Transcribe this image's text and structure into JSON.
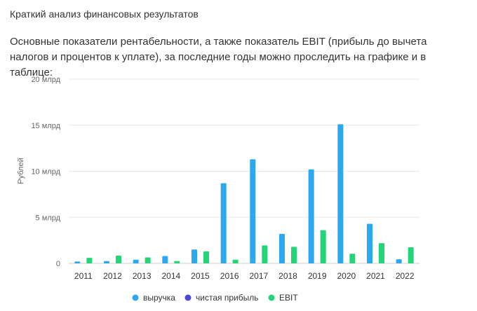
{
  "heading": "Краткий анализ финансовых результатов",
  "intro": "Основные показатели рентабельности, а также показатель EBIT (прибыль до вычета налогов и процентов к уплате), за последние годы можно проследить на графике и в таблице:",
  "chart_data": {
    "type": "bar",
    "title": "",
    "xlabel": "",
    "ylabel": "Рублей",
    "ylim": [
      0,
      20
    ],
    "yticks": [
      {
        "value": 0,
        "label": "0"
      },
      {
        "value": 5,
        "label": "5 млрд"
      },
      {
        "value": 10,
        "label": "10 млрд"
      },
      {
        "value": 15,
        "label": "15 млрд"
      },
      {
        "value": 20,
        "label": "20 млрд"
      }
    ],
    "grid": true,
    "legend_position": "bottom",
    "categories": [
      "2011",
      "2012",
      "2013",
      "2014",
      "2015",
      "2016",
      "2017",
      "2018",
      "2019",
      "2020",
      "2021",
      "2022"
    ],
    "series": [
      {
        "name": "выручка",
        "color": "#2ba8f0",
        "values": [
          0.2,
          0.25,
          0.4,
          0.8,
          1.5,
          8.7,
          11.3,
          3.2,
          10.2,
          15.1,
          4.3,
          0.45
        ]
      },
      {
        "name": "чистая прибыль",
        "color": "#5146d6",
        "values": [
          0,
          0,
          0,
          0,
          0,
          0,
          0,
          0,
          0,
          0,
          0,
          0
        ]
      },
      {
        "name": "EBIT",
        "color": "#23d478",
        "values": [
          0.6,
          0.85,
          0.65,
          0.25,
          1.3,
          0.4,
          1.95,
          1.8,
          3.6,
          1.05,
          2.2,
          1.75
        ]
      }
    ]
  }
}
